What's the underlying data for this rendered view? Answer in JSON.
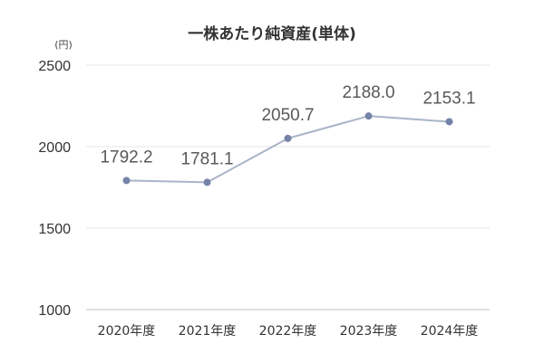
{
  "chart_data": {
    "type": "line",
    "title": "一株あたり純資産(単体)",
    "unit_label": "(円)",
    "xlabel": "",
    "ylabel": "",
    "categories": [
      "2020年度",
      "2021年度",
      "2022年度",
      "2023年度",
      "2024年度"
    ],
    "series": [
      {
        "values": [
          1792.2,
          1781.1,
          2050.7,
          2188.0,
          2153.1
        ],
        "value_labels": [
          "1792.2",
          "1781.1",
          "2050.7",
          "2188.0",
          "2153.1"
        ]
      }
    ],
    "ylim": [
      1000,
      2500
    ],
    "yticks": [
      2500,
      2000,
      1500,
      1000
    ],
    "grid": true,
    "legend": "none",
    "colors": {
      "line": "#aab4c8",
      "marker": "#7583a8",
      "grid": "#e6e6e6",
      "axis": "#bfbfbf"
    }
  }
}
